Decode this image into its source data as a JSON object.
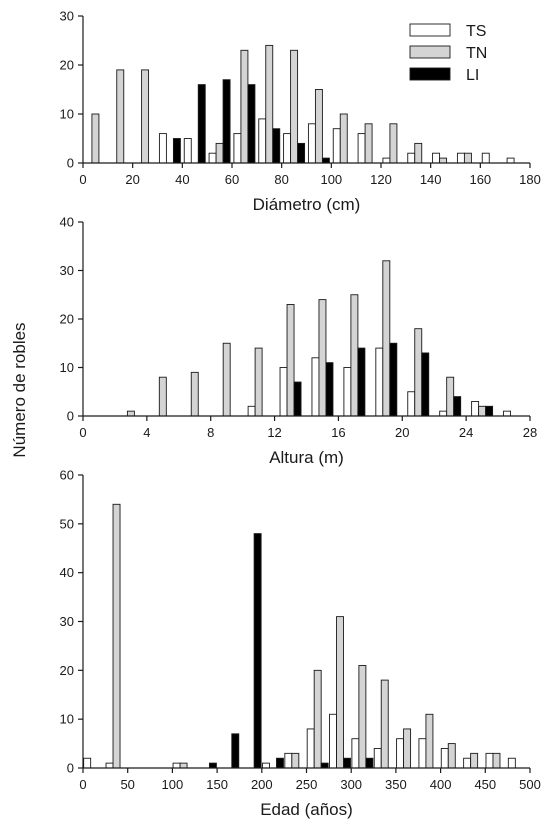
{
  "colors": {
    "TS": "#ffffff",
    "TN": "#d4d4d4",
    "LI": "#000000"
  },
  "shared_ylabel": "Número de robles",
  "chart_data": [
    {
      "type": "bar",
      "xlabel": "Diámetro (cm)",
      "xlim": [
        0,
        180
      ],
      "ylim": [
        0,
        30
      ],
      "xticks": [
        0,
        20,
        40,
        60,
        80,
        100,
        120,
        140,
        160,
        180
      ],
      "yticks": [
        0,
        10,
        20,
        30
      ],
      "legend": {
        "placement": "top-right",
        "entries": [
          "TS",
          "TN",
          "LI"
        ]
      },
      "bin_width": 10,
      "series": [
        {
          "name": "TS",
          "x": [
            5,
            35,
            45,
            55,
            65,
            75,
            85,
            95,
            105,
            115,
            125,
            135,
            145,
            155,
            165,
            175
          ],
          "values": [
            0,
            6,
            5,
            2,
            6,
            9,
            6,
            8,
            7,
            6,
            1,
            2,
            2,
            2,
            2,
            1
          ]
        },
        {
          "name": "TN",
          "x": [
            5,
            15,
            25,
            45,
            55,
            65,
            75,
            85,
            95,
            105,
            115,
            125,
            135,
            145,
            155
          ],
          "values": [
            10,
            19,
            19,
            0,
            4,
            23,
            24,
            23,
            15,
            10,
            8,
            8,
            4,
            1,
            2
          ]
        },
        {
          "name": "LI",
          "x": [
            35,
            45,
            55,
            65,
            75,
            85,
            95
          ],
          "values": [
            5,
            16,
            17,
            16,
            7,
            4,
            1
          ]
        }
      ]
    },
    {
      "type": "bar",
      "xlabel": "Altura (m)",
      "xlim": [
        0,
        28
      ],
      "ylim": [
        0,
        40
      ],
      "xticks": [
        0,
        4,
        8,
        12,
        16,
        20,
        24,
        28
      ],
      "yticks": [
        0,
        10,
        20,
        30,
        40
      ],
      "bin_width": 2,
      "series": [
        {
          "name": "TS",
          "x": [
            3,
            11,
            13,
            15,
            17,
            19,
            21,
            23,
            25,
            27
          ],
          "values": [
            0,
            2,
            10,
            12,
            10,
            14,
            5,
            1,
            3,
            1
          ]
        },
        {
          "name": "TN",
          "x": [
            3,
            5,
            7,
            9,
            11,
            13,
            15,
            17,
            19,
            21,
            23,
            25
          ],
          "values": [
            1,
            8,
            9,
            15,
            14,
            23,
            24,
            25,
            32,
            18,
            8,
            2
          ]
        },
        {
          "name": "LI",
          "x": [
            13,
            15,
            17,
            19,
            21,
            23,
            25
          ],
          "values": [
            7,
            11,
            14,
            15,
            13,
            4,
            2
          ]
        }
      ]
    },
    {
      "type": "bar",
      "xlabel": "Edad (años)",
      "xlim": [
        0,
        500
      ],
      "ylim": [
        0,
        60
      ],
      "xticks": [
        0,
        50,
        100,
        150,
        200,
        250,
        300,
        350,
        400,
        450,
        500
      ],
      "yticks": [
        0,
        10,
        20,
        30,
        40,
        50,
        60
      ],
      "bin_width": 25,
      "series": [
        {
          "name": "TS",
          "x": [
            12.5,
            37.5,
            112.5,
            212.5,
            237.5,
            262.5,
            287.5,
            312.5,
            337.5,
            362.5,
            387.5,
            412.5,
            437.5,
            462.5,
            487.5
          ],
          "values": [
            2,
            1,
            1,
            1,
            3,
            8,
            11,
            6,
            4,
            6,
            6,
            4,
            2,
            3,
            2
          ]
        },
        {
          "name": "TN",
          "x": [
            37.5,
            112.5,
            237.5,
            262.5,
            287.5,
            312.5,
            337.5,
            362.5,
            387.5,
            412.5,
            437.5,
            462.5
          ],
          "values": [
            54,
            1,
            3,
            20,
            31,
            21,
            18,
            8,
            11,
            5,
            3,
            3
          ]
        },
        {
          "name": "LI",
          "x": [
            137.5,
            162.5,
            187.5,
            212.5,
            262.5,
            287.5,
            312.5
          ],
          "values": [
            1,
            7,
            48,
            2,
            1,
            2,
            2
          ]
        }
      ]
    }
  ]
}
